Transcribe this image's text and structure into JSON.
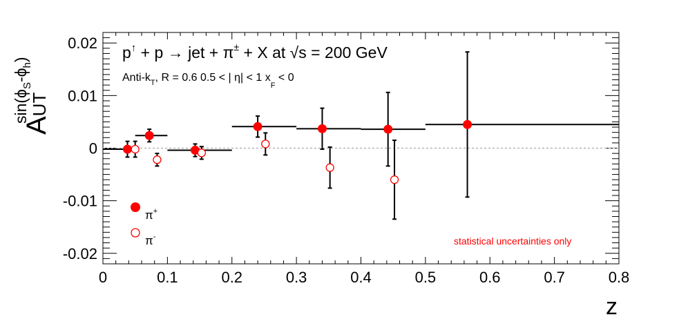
{
  "chart_data": {
    "type": "scatter",
    "title": "p↑ + p → jet + π± + X at √s = 200 GeV",
    "title_parts": {
      "p": "p",
      "up": "↑",
      "mid": " + p → jet + π",
      "pm": "±",
      "tail": " + X at ",
      "root": "√",
      "s": "s = 200 GeV"
    },
    "subtitle_parts": {
      "a": "Anti-k",
      "t": "T",
      "b": ", R = 0.6   0.5 < | η| < 1   x",
      "f": "F",
      "c": " < 0"
    },
    "xlabel": "z",
    "ylabel_parts": {
      "A": "A",
      "UT": "UT",
      "sin": "sin(ϕ",
      "s": "S",
      "mid": "-ϕ",
      "h": "h",
      "close": ")"
    },
    "xlim": [
      0,
      0.8
    ],
    "ylim": [
      -0.022,
      0.022
    ],
    "x_ticks": [
      "0",
      "0.1",
      "0.2",
      "0.3",
      "0.4",
      "0.5",
      "0.6",
      "0.7",
      "0.8"
    ],
    "y_ticks": [
      "-0.02",
      "-0.01",
      "0",
      "0.01",
      "0.02"
    ],
    "note": "statistical uncertainties only",
    "series": [
      {
        "name": "π⁺",
        "legend_main": "π",
        "legend_sup": "+",
        "marker": "filled-circle",
        "color": "#ff0000",
        "points": [
          {
            "x": 0.038,
            "y": -0.0002,
            "xlo": 0.0,
            "xhi": 0.05,
            "yerr": 0.0015
          },
          {
            "x": 0.072,
            "y": 0.0024,
            "xlo": 0.05,
            "xhi": 0.1,
            "yerr": 0.0012
          },
          {
            "x": 0.143,
            "y": -0.0004,
            "xlo": 0.1,
            "xhi": 0.2,
            "yerr": 0.0012
          },
          {
            "x": 0.24,
            "y": 0.0041,
            "xlo": 0.2,
            "xhi": 0.3,
            "yerr": 0.002
          },
          {
            "x": 0.34,
            "y": 0.0037,
            "xlo": 0.3,
            "xhi": 0.4,
            "yerr": 0.0039
          },
          {
            "x": 0.442,
            "y": 0.0036,
            "xlo": 0.4,
            "xhi": 0.5,
            "yerr": 0.007
          },
          {
            "x": 0.565,
            "y": 0.0045,
            "xlo": 0.5,
            "xhi": 0.8,
            "yerr": 0.0138
          }
        ]
      },
      {
        "name": "π⁻",
        "legend_main": "π",
        "legend_sup": "-",
        "marker": "open-circle",
        "color": "#ff0000",
        "points": [
          {
            "x": 0.05,
            "y": -0.0002,
            "yerr": 0.0015
          },
          {
            "x": 0.084,
            "y": -0.0022,
            "yerr": 0.0012
          },
          {
            "x": 0.153,
            "y": -0.0009,
            "yerr": 0.0012
          },
          {
            "x": 0.252,
            "y": 0.0008,
            "yerr": 0.0021
          },
          {
            "x": 0.352,
            "y": -0.0037,
            "yerr": 0.0039
          },
          {
            "x": 0.452,
            "y": -0.006,
            "yerr": 0.0075
          }
        ]
      }
    ],
    "zero_line": {
      "y": 0,
      "color": "#aaaaaa"
    },
    "grid": false,
    "legend_position": "bottom-left"
  }
}
